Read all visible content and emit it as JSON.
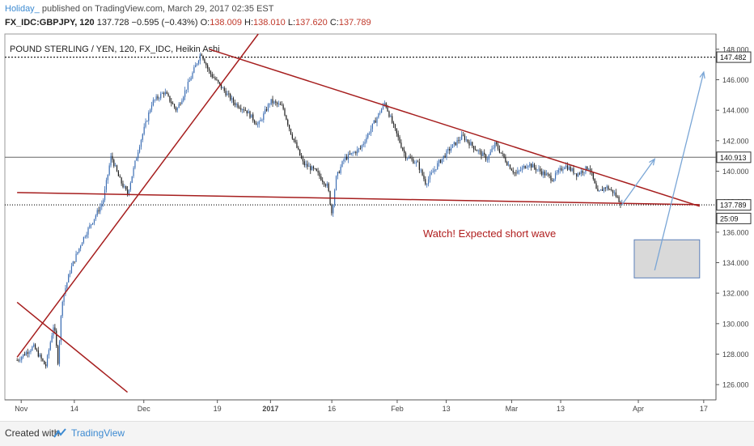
{
  "header": {
    "username": "Holiday_",
    "published_text": " published on TradingView.com, March 29, 2017 02:35 EST",
    "symbol": "FX_IDC:GBPJPY, 120",
    "last": "137.728",
    "change": "−0.595 (−0.43%)",
    "o_label": "O:",
    "o_value": "138.009",
    "h_label": "H:",
    "h_value": "138.010",
    "l_label": "L:",
    "l_value": "137.620",
    "c_label": "C:",
    "c_value": "137.789"
  },
  "chart_data": {
    "type": "candlestick",
    "title": "POUND STERLING / YEN, 120, FX_IDC, Heikin Ashi",
    "annotation": "Watch! Expected short wave",
    "x_ticks": [
      "Nov",
      "14",
      "Dec",
      "19",
      "2017",
      "16",
      "Feb",
      "13",
      "Mar",
      "13",
      "Apr",
      "17"
    ],
    "y_ticks": [
      "148.000",
      "146.000",
      "144.000",
      "142.000",
      "140.000",
      "138.000",
      "136.000",
      "134.000",
      "132.000",
      "130.000",
      "128.000",
      "126.000"
    ],
    "ylim": [
      125.0,
      149.0
    ],
    "price_labels": [
      {
        "text": "147.482",
        "value": 147.482
      },
      {
        "text": "140.913",
        "value": 140.913
      },
      {
        "text": "137.789",
        "value": 137.789
      },
      {
        "text": "25:09",
        "value": 136.9
      }
    ],
    "price_path": [
      {
        "d": "2016-10-31",
        "p": 127.6
      },
      {
        "d": "2016-11-04",
        "p": 128.5
      },
      {
        "d": "2016-11-07",
        "p": 127.2
      },
      {
        "d": "2016-11-09",
        "p": 130.0
      },
      {
        "d": "2016-11-10",
        "p": 127.5
      },
      {
        "d": "2016-11-11",
        "p": 131.5
      },
      {
        "d": "2016-11-13",
        "p": 133.5
      },
      {
        "d": "2016-11-16",
        "p": 135.5
      },
      {
        "d": "2016-11-18",
        "p": 136.5
      },
      {
        "d": "2016-11-21",
        "p": 138.0
      },
      {
        "d": "2016-11-23",
        "p": 141.0
      },
      {
        "d": "2016-11-25",
        "p": 139.5
      },
      {
        "d": "2016-11-27",
        "p": 138.5
      },
      {
        "d": "2016-11-30",
        "p": 141.8
      },
      {
        "d": "2016-12-03",
        "p": 144.5
      },
      {
        "d": "2016-12-06",
        "p": 145.2
      },
      {
        "d": "2016-12-09",
        "p": 144.0
      },
      {
        "d": "2016-12-12",
        "p": 145.8
      },
      {
        "d": "2016-12-15",
        "p": 147.8
      },
      {
        "d": "2016-12-17",
        "p": 146.5
      },
      {
        "d": "2016-12-20",
        "p": 145.5
      },
      {
        "d": "2016-12-23",
        "p": 144.5
      },
      {
        "d": "2016-12-26",
        "p": 144.0
      },
      {
        "d": "2016-12-29",
        "p": 143.0
      },
      {
        "d": "2017-01-01",
        "p": 144.6
      },
      {
        "d": "2017-01-04",
        "p": 144.2
      },
      {
        "d": "2017-01-06",
        "p": 142.5
      },
      {
        "d": "2017-01-09",
        "p": 140.5
      },
      {
        "d": "2017-01-12",
        "p": 140.0
      },
      {
        "d": "2017-01-15",
        "p": 139.0
      },
      {
        "d": "2017-01-16",
        "p": 137.2
      },
      {
        "d": "2017-01-17",
        "p": 139.5
      },
      {
        "d": "2017-01-19",
        "p": 140.8
      },
      {
        "d": "2017-01-23",
        "p": 141.5
      },
      {
        "d": "2017-01-26",
        "p": 143.0
      },
      {
        "d": "2017-01-29",
        "p": 144.5
      },
      {
        "d": "2017-01-31",
        "p": 143.0
      },
      {
        "d": "2017-02-03",
        "p": 141.0
      },
      {
        "d": "2017-02-06",
        "p": 140.5
      },
      {
        "d": "2017-02-08",
        "p": 139.2
      },
      {
        "d": "2017-02-11",
        "p": 140.5
      },
      {
        "d": "2017-02-14",
        "p": 141.5
      },
      {
        "d": "2017-02-17",
        "p": 142.3
      },
      {
        "d": "2017-02-20",
        "p": 141.5
      },
      {
        "d": "2017-02-23",
        "p": 140.8
      },
      {
        "d": "2017-02-25",
        "p": 141.8
      },
      {
        "d": "2017-02-28",
        "p": 140.5
      },
      {
        "d": "2017-03-02",
        "p": 139.8
      },
      {
        "d": "2017-03-05",
        "p": 140.5
      },
      {
        "d": "2017-03-08",
        "p": 140.0
      },
      {
        "d": "2017-03-11",
        "p": 139.5
      },
      {
        "d": "2017-03-14",
        "p": 140.4
      },
      {
        "d": "2017-03-17",
        "p": 139.8
      },
      {
        "d": "2017-03-20",
        "p": 140.3
      },
      {
        "d": "2017-03-22",
        "p": 138.5
      },
      {
        "d": "2017-03-24",
        "p": 139.0
      },
      {
        "d": "2017-03-26",
        "p": 138.6
      },
      {
        "d": "2017-03-28",
        "p": 137.8
      }
    ],
    "trend_lines": [
      {
        "from": {
          "d": "2016-10-31",
          "p": 127.8
        },
        "to": {
          "d": "2016-12-29",
          "p": 149.0
        }
      },
      {
        "from": {
          "d": "2016-12-17",
          "p": 148.0
        },
        "to": {
          "d": "2017-04-16",
          "p": 137.7
        }
      },
      {
        "from": {
          "d": "2016-10-31",
          "p": 138.6
        },
        "to": {
          "d": "2017-04-16",
          "p": 137.8
        }
      },
      {
        "from": {
          "d": "2016-10-31",
          "p": 131.4
        },
        "to": {
          "d": "2016-11-27",
          "p": 125.5
        }
      }
    ],
    "horizontal_lines": [
      {
        "value": 147.482,
        "style": "dotted"
      },
      {
        "value": 140.913,
        "style": "solid"
      },
      {
        "value": 137.789,
        "style": "dotted"
      }
    ],
    "projection_arrows": [
      {
        "from": {
          "d": "2017-03-28",
          "p": 137.8
        },
        "to": {
          "d": "2017-04-05",
          "p": 140.8
        }
      },
      {
        "from": {
          "d": "2017-04-05",
          "p": 133.5
        },
        "to": {
          "d": "2017-04-17",
          "p": 146.5
        }
      }
    ],
    "target_box": {
      "d_from": "2017-03-31",
      "d_to": "2017-04-16",
      "p_top": 135.5,
      "p_bottom": 133.0
    },
    "colors": {
      "trend": "#a61e1e",
      "bull": "#3b6db3",
      "bear": "#1a1a1a",
      "arrow": "#7aa6d6",
      "box_fill": "#d9d9d9",
      "box_stroke": "#5b7fb8",
      "annotation": "#b01e1e"
    }
  },
  "footer": {
    "created_with": "Created with",
    "brand": "TradingView"
  }
}
